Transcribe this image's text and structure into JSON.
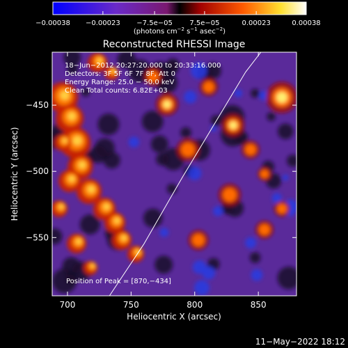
{
  "chart_data": {
    "type": "heatmap",
    "title": "Reconstructed RHESSI Image",
    "xlabel": "Heliocentric X (arcsec)",
    "ylabel": "Heliocentric Y (arcsec)",
    "xlim": [
      688,
      880
    ],
    "ylim": [
      -594,
      -410
    ],
    "x_ticks": [
      700,
      750,
      800,
      850
    ],
    "y_ticks": [
      -450,
      -500,
      -550
    ],
    "x_tick_labels": [
      "700",
      "750",
      "800",
      "850"
    ],
    "y_tick_labels": [
      "−450",
      "−500",
      "−550"
    ],
    "colorbar": {
      "min": -0.00038,
      "max": 0.00038,
      "tick_values": [
        -0.00038,
        -0.00023,
        -7.5e-05,
        7.5e-05,
        0.00023,
        0.00038
      ],
      "tick_labels": [
        "−0.00038",
        "−0.00023",
        "−7.5e−05",
        "7.5e−05",
        "0.00023",
        "0.00038"
      ],
      "unit_text": {
        "prefix": "(photons cm",
        "sup1": "−2",
        "mid1": " s",
        "sup2": "−1",
        "mid2": " asec",
        "sup3": "−2",
        "suffix": ")"
      },
      "colors": [
        "#0000ff",
        "#6633cc",
        "#aa22aa",
        "#000000",
        "#b00000",
        "#ff6600",
        "#ffff40",
        "#ffffff"
      ]
    },
    "annotations": [
      "18−Jun−2012 20:27:20.000 to 20:33:16.000",
      "Detectors: 3F 5F 6F 7F 8F, Att 0",
      "Energy Range: 25.0 − 50.0 keV",
      "Clean    Total counts: 6.82E+03"
    ],
    "peak_label": "Position of Peak = [870,−434]",
    "peak": [
      870,
      -434
    ],
    "limb_curve": [
      [
        733,
        -594
      ],
      [
        760,
        -555
      ],
      [
        790,
        -505
      ],
      [
        815,
        -465
      ],
      [
        840,
        -425
      ],
      [
        852,
        -410
      ]
    ]
  },
  "footer": {
    "timestamp": "11−May−2022 18:12"
  }
}
